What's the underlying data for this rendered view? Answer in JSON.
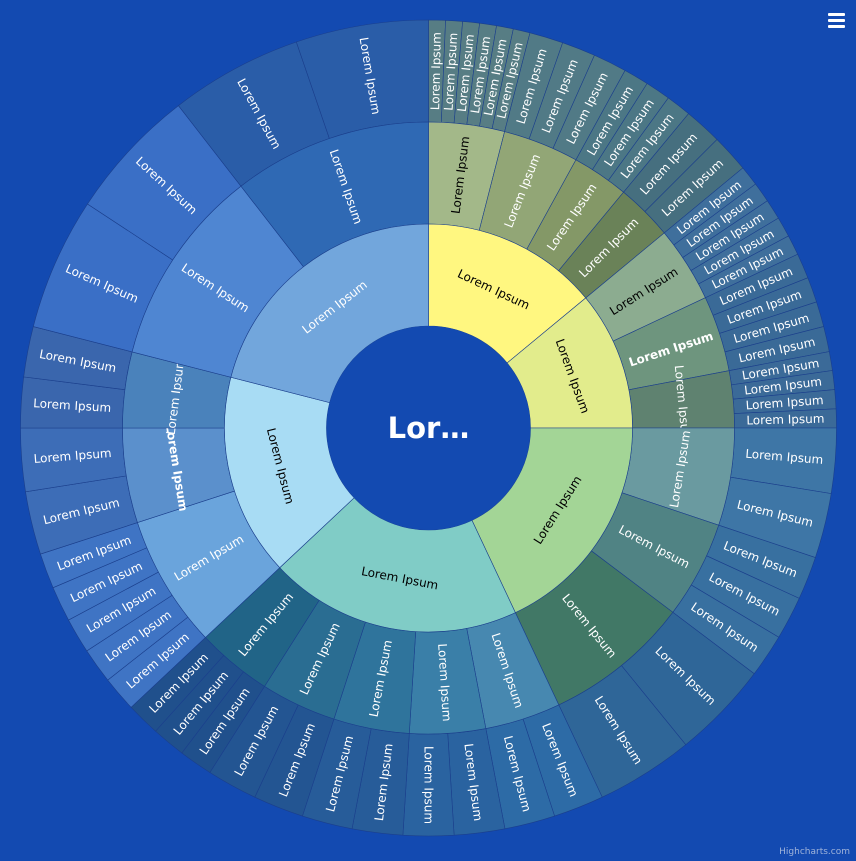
{
  "menu_icon": "hamburger-menu-icon",
  "credit": "Highcharts.com",
  "colors": {
    "background": "#134ab1"
  },
  "chart_data": {
    "type": "sunburst",
    "root": {
      "label": "Lor…",
      "full_label": "Lorem Ipsum",
      "color": "#134ab1"
    },
    "level1": [
      {
        "label": "Lorem Ipsum",
        "value": 14,
        "color": "#fff780"
      },
      {
        "label": "Lorem Ipsum",
        "value": 11,
        "color": "#e2ec8c"
      },
      {
        "label": "Lorem Ipsum",
        "value": 18,
        "color": "#a3d596"
      },
      {
        "label": "Lorem Ipsum",
        "value": 20,
        "color": "#80ccc6"
      },
      {
        "label": "Lorem Ipsum",
        "value": 16,
        "color": "#a8dcf4"
      },
      {
        "label": "Lorem Ipsum",
        "value": 21,
        "color": "#72a6dc"
      }
    ],
    "level2": [
      {
        "parent": 0,
        "label": "Lorem Ipsum",
        "value": 4,
        "color": "#a3b889"
      },
      {
        "parent": 0,
        "label": "Lorem Ipsum",
        "value": 4,
        "color": "#92a676"
      },
      {
        "parent": 0,
        "label": "Lorem Ipsum",
        "value": 3,
        "color": "#849867"
      },
      {
        "parent": 0,
        "label": "Lorem Ipsum",
        "value": 3,
        "color": "#6a8258"
      },
      {
        "parent": 1,
        "label": "Lorem Ipsum",
        "value": 4,
        "color": "#8cac90"
      },
      {
        "parent": 1,
        "label": "Lorem Ipsum",
        "value": 4,
        "color": "#6e957e",
        "emphasis": true
      },
      {
        "parent": 1,
        "label": "Lorem Ipsum",
        "value": 3,
        "color": "#5f8270"
      },
      {
        "parent": 2,
        "label": "Lorem Ipsum",
        "value": 4,
        "color": "#6a9aa0"
      },
      {
        "parent": 2,
        "label": "Lorem Ipsum",
        "value": 4,
        "color": "#508384"
      },
      {
        "parent": 2,
        "label": "Lorem Ipsum",
        "value": 6,
        "color": "#417866"
      },
      {
        "parent": 3,
        "label": "Lorem Ipsum",
        "value": 4,
        "color": "#4788b0"
      },
      {
        "parent": 3,
        "label": "Lorem Ipsum",
        "value": 4,
        "color": "#3a7fa8"
      },
      {
        "parent": 3,
        "label": "Lorem Ipsum",
        "value": 4,
        "color": "#2f749c"
      },
      {
        "parent": 3,
        "label": "Lorem Ipsum",
        "value": 4,
        "color": "#2a6d92"
      },
      {
        "parent": 3,
        "label": "Lorem Ipsum",
        "value": 4,
        "color": "#216487"
      },
      {
        "parent": 4,
        "label": "Lorem Ipsum",
        "value": 7,
        "color": "#6aa4dc"
      },
      {
        "parent": 4,
        "label": "Lorem Ipsum",
        "value": 5,
        "color": "#5b90cc",
        "emphasis": true
      },
      {
        "parent": 4,
        "label": "Lorem Ipsum",
        "value": 4,
        "color": "#4a82bb"
      },
      {
        "parent": 5,
        "label": "Lorem Ipsum",
        "value": 7,
        "color": "#4f86d2"
      },
      {
        "parent": 5,
        "label": "Lorem Ipsum",
        "value": 7,
        "color": "#2f69b4"
      }
    ],
    "level3": [
      {
        "parent": 0,
        "count": 6,
        "color": "#577d84"
      },
      {
        "parent": 1,
        "count": 3,
        "color": "#517a86"
      },
      {
        "parent": 2,
        "count": 3,
        "color": "#4c7785"
      },
      {
        "parent": 3,
        "count": 2,
        "color": "#466f7f"
      },
      {
        "parent": 4,
        "count": 5,
        "color": "#3f6f9c"
      },
      {
        "parent": 5,
        "count": 4,
        "color": "#3a6a97"
      },
      {
        "parent": 6,
        "count": 4,
        "color": "#3b6a98"
      },
      {
        "parent": 7,
        "count": 2,
        "color": "#3e76a6"
      },
      {
        "parent": 8,
        "count": 3,
        "color": "#3870a0"
      },
      {
        "parent": 9,
        "count": 2,
        "color": "#2f6698"
      },
      {
        "parent": 10,
        "count": 2,
        "color": "#2d6ba6"
      },
      {
        "parent": 11,
        "count": 2,
        "color": "#2a63a0"
      },
      {
        "parent": 12,
        "count": 2,
        "color": "#275c99"
      },
      {
        "parent": 13,
        "count": 2,
        "color": "#235592"
      },
      {
        "parent": 14,
        "count": 3,
        "color": "#20508c"
      },
      {
        "parent": 15,
        "count": 5,
        "color": "#3f74c4"
      },
      {
        "parent": 16,
        "count": 2,
        "color": "#3d6db7"
      },
      {
        "parent": 17,
        "count": 2,
        "color": "#3a66ad"
      },
      {
        "parent": 18,
        "count": 2,
        "color": "#3a6fc6"
      },
      {
        "parent": 19,
        "count": 2,
        "color": "#2a5da8"
      }
    ],
    "leaf_label": "Lorem Ipsum"
  }
}
